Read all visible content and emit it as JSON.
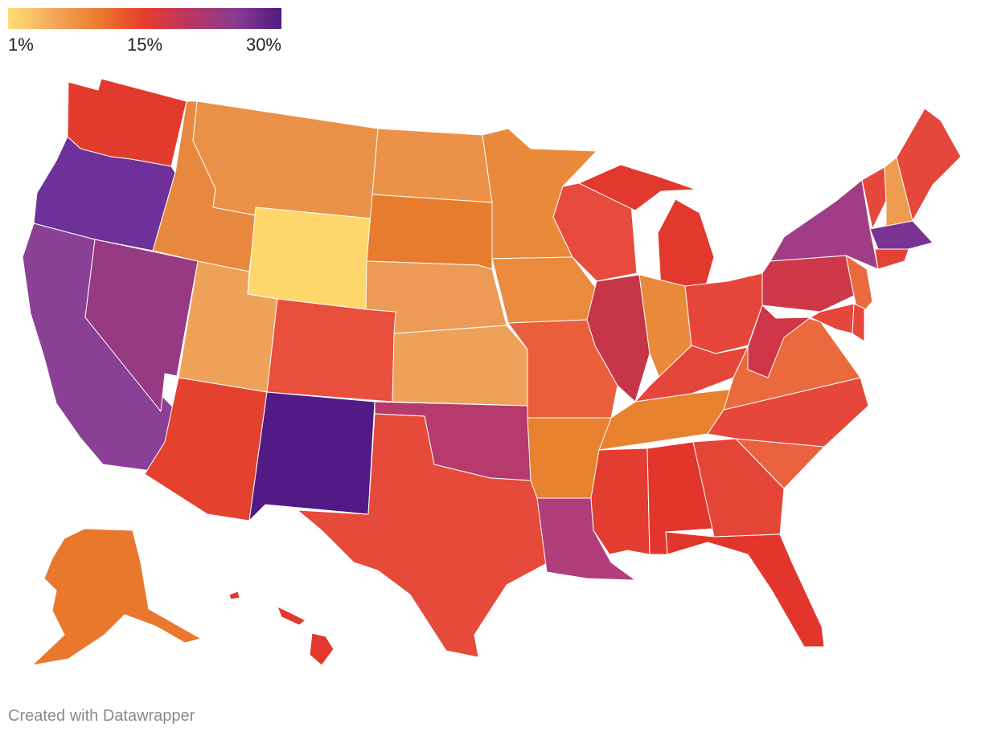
{
  "legend": {
    "min_label": "1%",
    "mid_label": "15%",
    "max_label": "30%",
    "gradient_colors": [
      "#ffde75",
      "#f3a85b",
      "#eb7a2e",
      "#e63c2f",
      "#b83660",
      "#8a3b91",
      "#4f1a80"
    ]
  },
  "credit": "Created with Datawrapper",
  "states": [
    {
      "code": "WA",
      "color": "#e23a2c"
    },
    {
      "code": "OR",
      "color": "#6d3199"
    },
    {
      "code": "CA",
      "color": "#8a4195"
    },
    {
      "code": "NV",
      "color": "#973a83"
    },
    {
      "code": "ID",
      "color": "#e8883e"
    },
    {
      "code": "MT",
      "color": "#ea9148"
    },
    {
      "code": "WY",
      "color": "#fdd76b"
    },
    {
      "code": "UT",
      "color": "#eea259"
    },
    {
      "code": "CO",
      "color": "#e84f3c"
    },
    {
      "code": "AZ",
      "color": "#e4412f"
    },
    {
      "code": "NM",
      "color": "#521a85"
    },
    {
      "code": "ND",
      "color": "#eb9248"
    },
    {
      "code": "SD",
      "color": "#e87c2e"
    },
    {
      "code": "NE",
      "color": "#ec9a55"
    },
    {
      "code": "KS",
      "color": "#eea259"
    },
    {
      "code": "OK",
      "color": "#b63a6b"
    },
    {
      "code": "TX",
      "color": "#e64a3a"
    },
    {
      "code": "MN",
      "color": "#e9893a"
    },
    {
      "code": "IA",
      "color": "#e98a3d"
    },
    {
      "code": "MO",
      "color": "#ea5e3c"
    },
    {
      "code": "AR",
      "color": "#e8822f"
    },
    {
      "code": "LA",
      "color": "#b13d7a"
    },
    {
      "code": "WI",
      "color": "#e64b3e"
    },
    {
      "code": "IL",
      "color": "#c73548"
    },
    {
      "code": "MI",
      "color": "#e2382d"
    },
    {
      "code": "IN",
      "color": "#e9893a"
    },
    {
      "code": "OH",
      "color": "#e64539"
    },
    {
      "code": "KY",
      "color": "#e64539"
    },
    {
      "code": "TN",
      "color": "#e8822f"
    },
    {
      "code": "MS",
      "color": "#e33c30"
    },
    {
      "code": "AL",
      "color": "#e2362c"
    },
    {
      "code": "GA",
      "color": "#e54536"
    },
    {
      "code": "FL",
      "color": "#e2362c"
    },
    {
      "code": "SC",
      "color": "#ea613e"
    },
    {
      "code": "NC",
      "color": "#e5473a"
    },
    {
      "code": "VA",
      "color": "#ea6a3e"
    },
    {
      "code": "WV",
      "color": "#cf3447"
    },
    {
      "code": "PA",
      "color": "#cf3848"
    },
    {
      "code": "NY",
      "color": "#a13d86"
    },
    {
      "code": "VT",
      "color": "#e5473a"
    },
    {
      "code": "NH",
      "color": "#ee9c50"
    },
    {
      "code": "ME",
      "color": "#e5473a"
    },
    {
      "code": "MA",
      "color": "#7a3392"
    },
    {
      "code": "CT",
      "color": "#e54236"
    },
    {
      "code": "NJ",
      "color": "#ea6a3e"
    },
    {
      "code": "MD",
      "color": "#e5473a"
    },
    {
      "code": "DE",
      "color": "#e5473a"
    },
    {
      "code": "AK",
      "color": "#e9782d"
    },
    {
      "code": "HI",
      "color": "#e2382d"
    }
  ]
}
